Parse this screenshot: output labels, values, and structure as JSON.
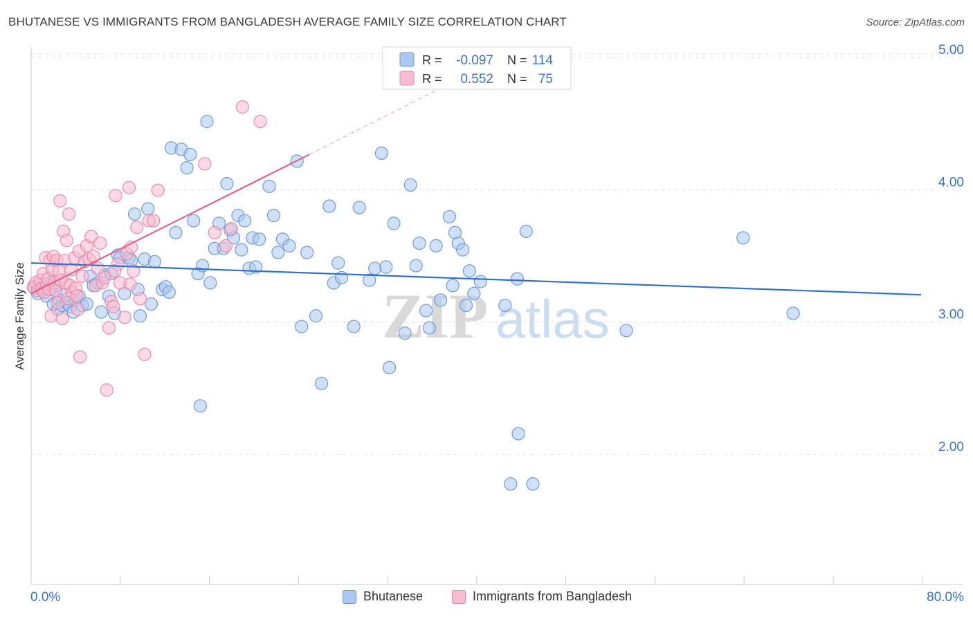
{
  "title": "BHUTANESE VS IMMIGRANTS FROM BANGLADESH AVERAGE FAMILY SIZE CORRELATION CHART",
  "source": "Source: ZipAtlas.com",
  "watermark": {
    "zip": "ZIP",
    "atlas": "atlas"
  },
  "colors": {
    "blue_fill": "#aac8f0",
    "blue_stroke": "#6f9ad8",
    "blue_line": "#2e6fd0",
    "pink_fill": "#f7bcd0",
    "pink_stroke": "#e98aab",
    "pink_line": "#e0608e",
    "value_text": "#3a73c8",
    "grid": "#dddddd"
  },
  "legend_top": [
    {
      "r_label": "R =",
      "r_value": "-0.097",
      "n_label": "N =",
      "n_value": "114"
    },
    {
      "r_label": "R =",
      "r_value": "0.552",
      "n_label": "N =",
      "n_value": "75"
    }
  ],
  "legend_bottom": [
    "Bhutanese",
    "Immigrants from Bangladesh"
  ],
  "chart_data": {
    "type": "scatter",
    "title": "BHUTANESE VS IMMIGRANTS FROM BANGLADESH AVERAGE FAMILY SIZE CORRELATION CHART",
    "xlabel": "",
    "ylabel": "Average Family Size",
    "xlim": [
      0,
      80
    ],
    "ylim": [
      1,
      5.15
    ],
    "x_tick_labels": [
      "0.0%",
      "80.0%"
    ],
    "y_ticks": [
      2.0,
      3.0,
      4.0,
      5.0
    ],
    "y_tick_labels": [
      "2.00",
      "3.00",
      "4.00",
      "5.00"
    ],
    "grid": true,
    "legend_placement": "top-center",
    "series": [
      {
        "name": "Bhutanese",
        "R": -0.097,
        "N": 114,
        "trend": {
          "x": [
            0,
            80
          ],
          "y": [
            3.43,
            3.19
          ]
        },
        "points": [
          [
            0.3,
            3.24
          ],
          [
            0.6,
            3.2
          ],
          [
            0.8,
            3.27
          ],
          [
            1.0,
            3.22
          ],
          [
            1.2,
            3.25
          ],
          [
            1.4,
            3.18
          ],
          [
            1.6,
            3.28
          ],
          [
            1.8,
            3.23
          ],
          [
            2.0,
            3.12
          ],
          [
            2.2,
            3.26
          ],
          [
            2.4,
            3.08
          ],
          [
            2.6,
            3.15
          ],
          [
            2.8,
            3.11
          ],
          [
            3.0,
            3.19
          ],
          [
            3.2,
            3.13
          ],
          [
            3.5,
            3.1
          ],
          [
            3.8,
            3.06
          ],
          [
            4.0,
            3.15
          ],
          [
            4.3,
            3.18
          ],
          [
            4.6,
            3.11
          ],
          [
            5.0,
            3.12
          ],
          [
            5.3,
            3.33
          ],
          [
            5.6,
            3.26
          ],
          [
            6.0,
            3.28
          ],
          [
            6.3,
            3.06
          ],
          [
            6.6,
            3.34
          ],
          [
            7.0,
            3.18
          ],
          [
            7.2,
            3.35
          ],
          [
            7.5,
            3.05
          ],
          [
            7.8,
            3.49
          ],
          [
            8.0,
            3.47
          ],
          [
            8.4,
            3.2
          ],
          [
            8.8,
            3.47
          ],
          [
            9.0,
            3.45
          ],
          [
            9.3,
            3.8
          ],
          [
            9.6,
            3.23
          ],
          [
            9.8,
            3.03
          ],
          [
            10.2,
            3.46
          ],
          [
            10.5,
            3.84
          ],
          [
            10.8,
            3.12
          ],
          [
            11.1,
            3.44
          ],
          [
            12.6,
            4.3
          ],
          [
            11.8,
            3.23
          ],
          [
            12.1,
            3.25
          ],
          [
            12.4,
            3.21
          ],
          [
            13.0,
            3.66
          ],
          [
            13.5,
            4.29
          ],
          [
            14.0,
            4.15
          ],
          [
            14.3,
            4.25
          ],
          [
            14.6,
            3.75
          ],
          [
            15.0,
            3.35
          ],
          [
            15.4,
            3.41
          ],
          [
            15.8,
            4.5
          ],
          [
            16.1,
            3.28
          ],
          [
            16.5,
            3.54
          ],
          [
            16.9,
            3.73
          ],
          [
            17.3,
            3.54
          ],
          [
            17.6,
            4.03
          ],
          [
            17.9,
            3.68
          ],
          [
            18.2,
            3.62
          ],
          [
            18.6,
            3.79
          ],
          [
            18.9,
            3.53
          ],
          [
            19.2,
            3.75
          ],
          [
            19.6,
            3.39
          ],
          [
            19.9,
            3.62
          ],
          [
            20.2,
            3.4
          ],
          [
            20.5,
            3.61
          ],
          [
            21.4,
            4.01
          ],
          [
            21.8,
            3.79
          ],
          [
            22.2,
            3.51
          ],
          [
            22.6,
            3.61
          ],
          [
            23.2,
            3.56
          ],
          [
            23.9,
            4.2
          ],
          [
            24.3,
            2.95
          ],
          [
            24.8,
            3.51
          ],
          [
            25.6,
            3.03
          ],
          [
            26.1,
            2.52
          ],
          [
            26.8,
            3.86
          ],
          [
            27.2,
            3.28
          ],
          [
            27.6,
            3.43
          ],
          [
            27.9,
            3.32
          ],
          [
            29.0,
            2.95
          ],
          [
            29.5,
            3.85
          ],
          [
            30.4,
            3.3
          ],
          [
            30.9,
            3.39
          ],
          [
            31.5,
            4.26
          ],
          [
            31.9,
            3.4
          ],
          [
            32.2,
            2.64
          ],
          [
            32.6,
            3.73
          ],
          [
            33.6,
            2.9
          ],
          [
            34.1,
            4.02
          ],
          [
            34.6,
            3.41
          ],
          [
            34.9,
            3.58
          ],
          [
            35.5,
            3.07
          ],
          [
            35.8,
            2.94
          ],
          [
            36.4,
            3.56
          ],
          [
            36.8,
            3.15
          ],
          [
            37.6,
            3.78
          ],
          [
            37.9,
            3.26
          ],
          [
            38.1,
            3.66
          ],
          [
            38.4,
            3.58
          ],
          [
            38.8,
            3.53
          ],
          [
            39.1,
            3.11
          ],
          [
            39.4,
            3.37
          ],
          [
            39.8,
            3.2
          ],
          [
            40.4,
            3.29
          ],
          [
            42.6,
            3.11
          ],
          [
            43.1,
            1.76
          ],
          [
            43.7,
            3.31
          ],
          [
            43.8,
            2.14
          ],
          [
            44.5,
            3.67
          ],
          [
            45.1,
            1.76
          ],
          [
            64.0,
            3.62
          ],
          [
            68.5,
            3.05
          ],
          [
            53.5,
            2.92
          ],
          [
            15.2,
            2.35
          ]
        ]
      },
      {
        "name": "Immigrants from Bangladesh",
        "R": 0.552,
        "N": 75,
        "trend": {
          "x": [
            0,
            25
          ],
          "y": [
            3.2,
            4.25
          ]
        },
        "trend_dashed": {
          "x": [
            25,
            37
          ],
          "y": [
            4.25,
            4.76
          ]
        },
        "points": [
          [
            0.2,
            3.25
          ],
          [
            0.4,
            3.28
          ],
          [
            0.6,
            3.22
          ],
          [
            0.8,
            3.3
          ],
          [
            1.0,
            3.24
          ],
          [
            1.1,
            3.35
          ],
          [
            1.2,
            3.21
          ],
          [
            1.3,
            3.47
          ],
          [
            1.4,
            3.27
          ],
          [
            1.5,
            3.31
          ],
          [
            1.6,
            3.23
          ],
          [
            1.7,
            3.45
          ],
          [
            1.8,
            3.03
          ],
          [
            1.9,
            3.38
          ],
          [
            2.0,
            3.48
          ],
          [
            2.1,
            3.28
          ],
          [
            2.2,
            3.22
          ],
          [
            2.3,
            3.45
          ],
          [
            2.4,
            3.13
          ],
          [
            2.5,
            3.37
          ],
          [
            2.6,
            3.9
          ],
          [
            2.7,
            3.3
          ],
          [
            2.8,
            3.01
          ],
          [
            2.9,
            3.67
          ],
          [
            3.0,
            3.45
          ],
          [
            3.1,
            3.28
          ],
          [
            3.2,
            3.6
          ],
          [
            3.3,
            3.16
          ],
          [
            3.4,
            3.8
          ],
          [
            3.5,
            3.26
          ],
          [
            3.6,
            3.38
          ],
          [
            3.7,
            3.21
          ],
          [
            3.9,
            3.47
          ],
          [
            4.0,
            3.24
          ],
          [
            4.1,
            3.18
          ],
          [
            4.2,
            3.08
          ],
          [
            4.3,
            3.52
          ],
          [
            4.4,
            2.72
          ],
          [
            4.6,
            3.33
          ],
          [
            4.8,
            3.44
          ],
          [
            5.0,
            3.56
          ],
          [
            5.2,
            3.46
          ],
          [
            5.4,
            3.63
          ],
          [
            5.6,
            3.48
          ],
          [
            5.8,
            3.26
          ],
          [
            6.0,
            3.39
          ],
          [
            6.2,
            3.58
          ],
          [
            6.4,
            3.28
          ],
          [
            6.6,
            3.32
          ],
          [
            6.8,
            2.47
          ],
          [
            7.0,
            2.94
          ],
          [
            7.2,
            3.14
          ],
          [
            7.4,
            3.1
          ],
          [
            7.6,
            3.94
          ],
          [
            7.8,
            3.42
          ],
          [
            8.0,
            3.28
          ],
          [
            8.4,
            3.02
          ],
          [
            8.6,
            3.5
          ],
          [
            8.8,
            4.0
          ],
          [
            8.9,
            3.27
          ],
          [
            9.0,
            3.55
          ],
          [
            9.2,
            3.37
          ],
          [
            9.5,
            3.7
          ],
          [
            9.8,
            3.16
          ],
          [
            10.2,
            2.74
          ],
          [
            10.6,
            3.75
          ],
          [
            11.0,
            3.75
          ],
          [
            11.4,
            3.98
          ],
          [
            16.5,
            3.66
          ],
          [
            17.5,
            3.56
          ],
          [
            18.0,
            3.69
          ],
          [
            19.0,
            4.61
          ],
          [
            15.6,
            4.18
          ],
          [
            20.6,
            4.5
          ],
          [
            7.5,
            3.37
          ]
        ]
      }
    ]
  }
}
